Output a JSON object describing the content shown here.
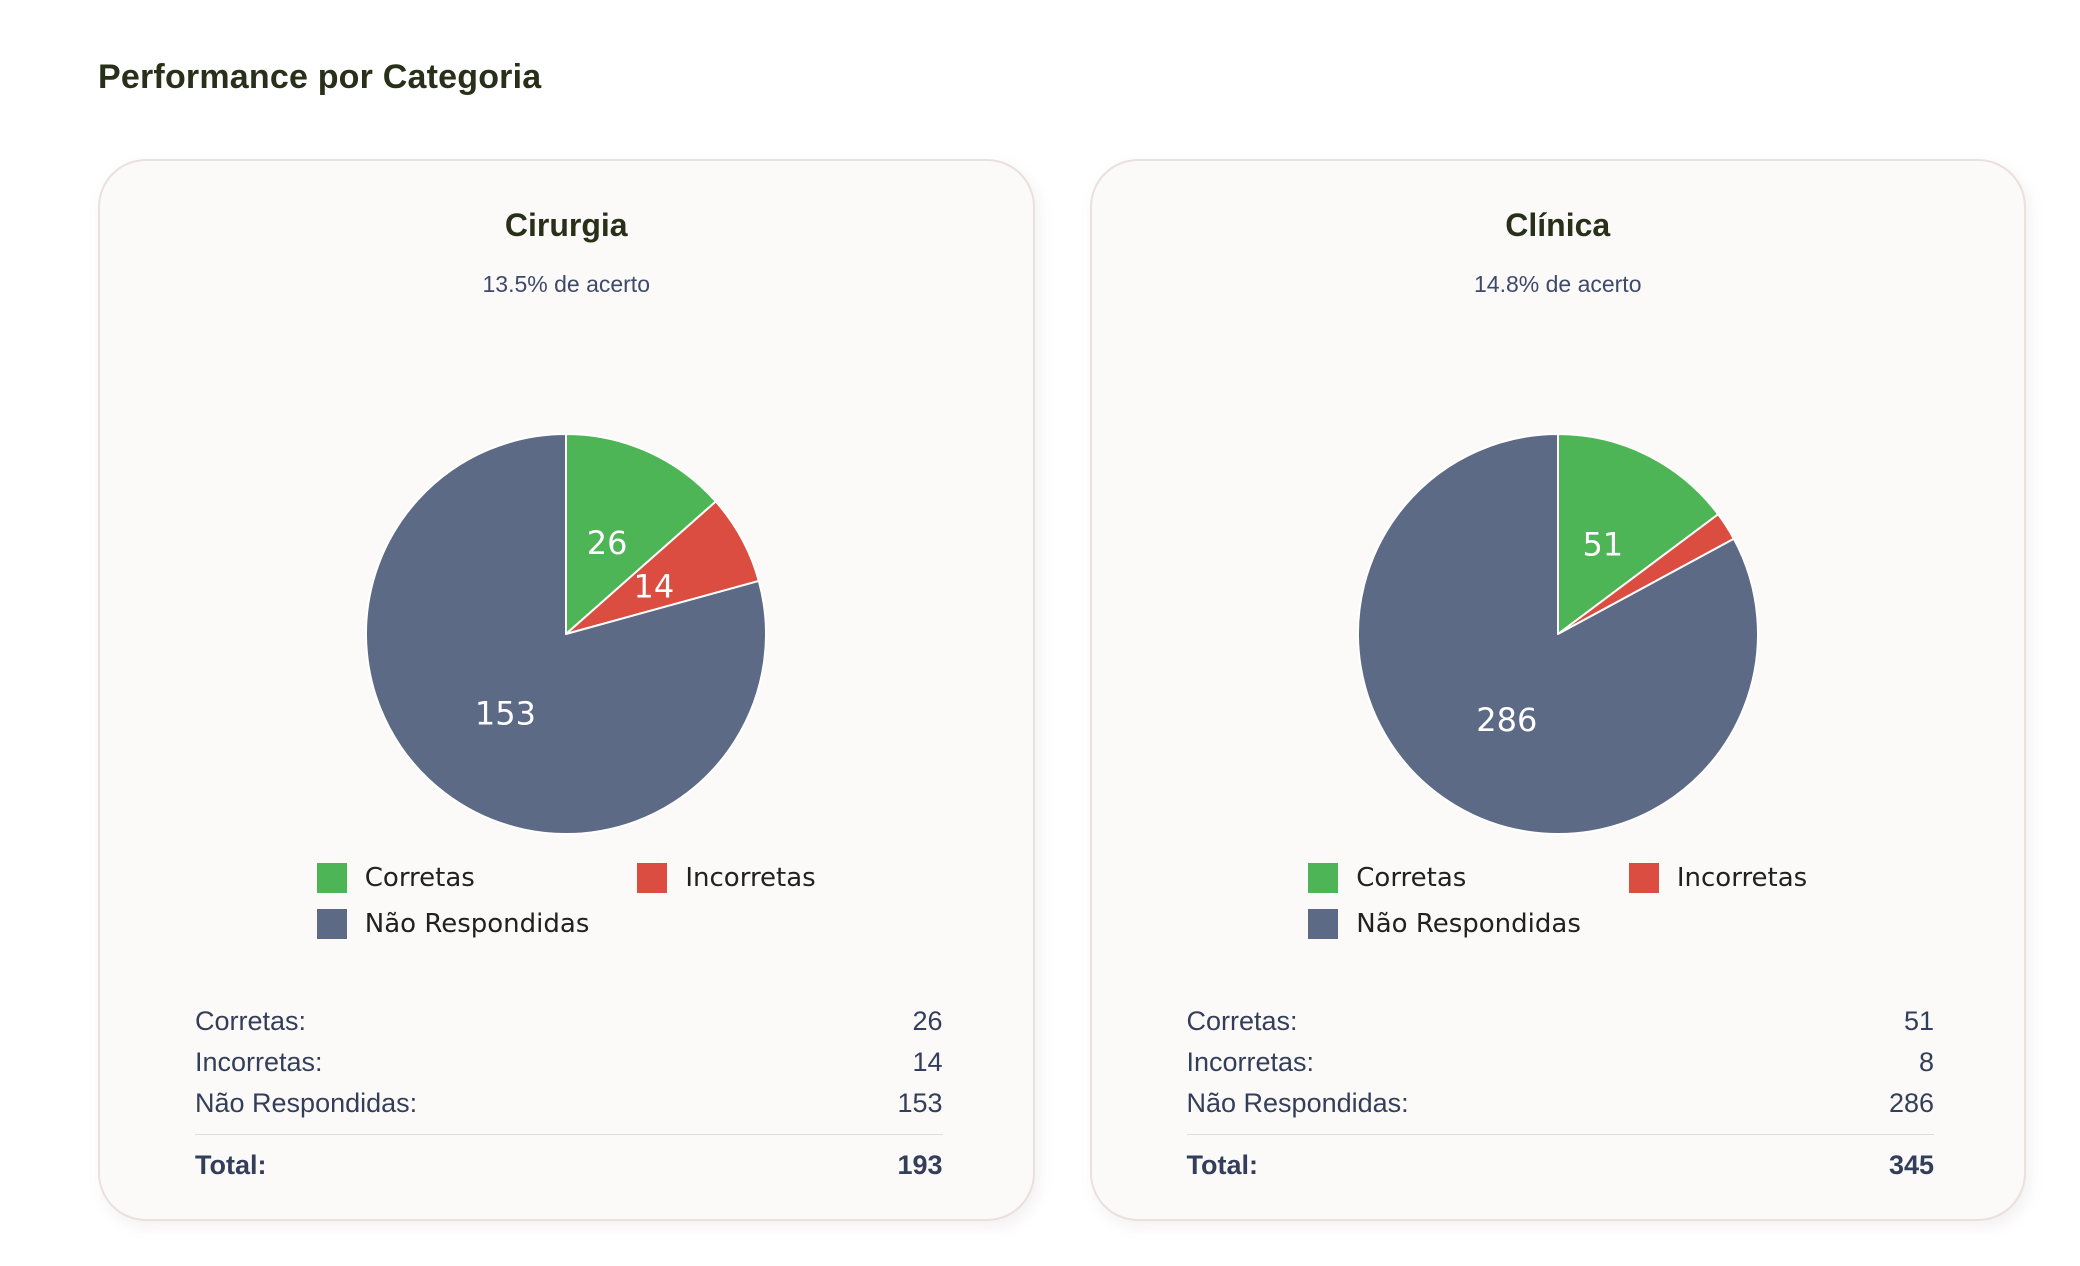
{
  "page": {
    "heading": "Performance por Categoria"
  },
  "palette": {
    "correct_green": "#4DB556",
    "incorrect_red": "#DB4D40",
    "unanswered_slate": "#5D6A86",
    "slice_edge_white": "#FFFFFF",
    "card_background": "#FBFAF8",
    "card_border": "#EAE0DE",
    "heading_text": "#28301A",
    "subtitle_text": "#3E4A6B",
    "stats_text": "#333E5A"
  },
  "chart_data": [
    {
      "type": "pie",
      "title": "Cirurgia",
      "subtitle": "13.5% de acerto",
      "accuracy_pct": 13.5,
      "labels": [
        "Corretas",
        "Incorretas",
        "Não Respondidas"
      ],
      "values": [
        26,
        14,
        153
      ],
      "slice_labels": [
        "26",
        "14",
        "153"
      ],
      "colors": [
        "#4DB556",
        "#DB4D40",
        "#5D6A86"
      ],
      "start_angle": "top",
      "direction": "clockwise",
      "legend_position": "below-two-columns",
      "total": 193
    },
    {
      "type": "pie",
      "title": "Clínica",
      "subtitle": "14.8% de acerto",
      "accuracy_pct": 14.8,
      "labels": [
        "Corretas",
        "Incorretas",
        "Não Respondidas"
      ],
      "values": [
        51,
        8,
        286
      ],
      "slice_labels": [
        "51",
        "",
        "286"
      ],
      "colors": [
        "#4DB556",
        "#DB4D40",
        "#5D6A86"
      ],
      "start_angle": "top",
      "direction": "clockwise",
      "legend_position": "below-two-columns",
      "total": 345
    }
  ],
  "cards": [
    {
      "stats": {
        "rows": [
          {
            "label": "Corretas:",
            "value": "26"
          },
          {
            "label": "Incorretas:",
            "value": "14"
          },
          {
            "label": "Não Respondidas:",
            "value": "153"
          }
        ],
        "total_label": "Total:",
        "total_value": "193"
      }
    },
    {
      "stats": {
        "rows": [
          {
            "label": "Corretas:",
            "value": "51"
          },
          {
            "label": "Incorretas:",
            "value": "8"
          },
          {
            "label": "Não Respondidas:",
            "value": "286"
          }
        ],
        "total_label": "Total:",
        "total_value": "345"
      }
    }
  ]
}
